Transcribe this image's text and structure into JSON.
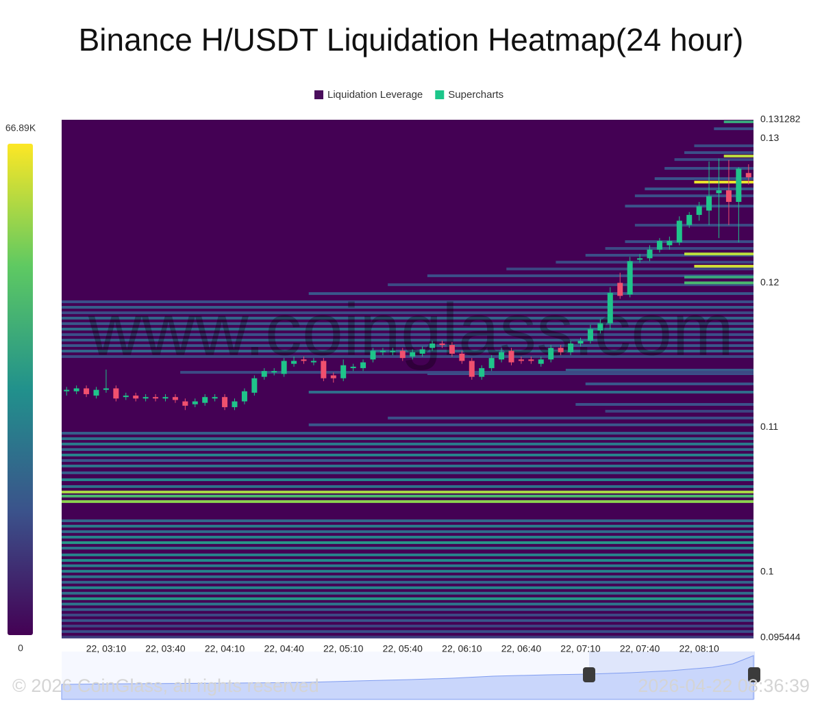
{
  "chart_data": {
    "type": "liquidation-heatmap",
    "title": "Binance H/USDT Liquidation Heatmap(24 hour)",
    "legend": [
      {
        "name": "Liquidation Leverage",
        "color": "#4a0e5c"
      },
      {
        "name": "Supercharts",
        "color": "#1cc68a"
      }
    ],
    "watermark": "www.coinglass.com",
    "copyright": "© 2026 CoinGlass, all rights reserved",
    "timestamp": "2026-04-22 08:36:39",
    "ylim": [
      0.095444,
      0.131282
    ],
    "yticks": [
      0.131282,
      0.13,
      0.12,
      0.11,
      0.1,
      0.095444
    ],
    "clim": [
      0,
      66890
    ],
    "colorbar_ticks": [
      {
        "value": 66890,
        "label": "66.89K"
      },
      0
    ],
    "colors": [
      "#440154",
      "#3b528b",
      "#21918c",
      "#5ec962",
      "#fde725"
    ],
    "up_color": "#1fc48a",
    "down_color": "#f0506e",
    "categories": [
      null,
      null,
      null,
      null,
      "22, 03:10",
      null,
      null,
      null,
      null,
      null,
      "22, 03:40",
      null,
      null,
      null,
      null,
      null,
      "22, 04:10",
      null,
      null,
      null,
      null,
      null,
      "22, 04:40",
      null,
      null,
      null,
      null,
      null,
      "22, 05:10",
      null,
      null,
      null,
      null,
      null,
      "22, 05:40",
      null,
      null,
      null,
      null,
      null,
      "22, 06:10",
      null,
      null,
      null,
      null,
      null,
      "22, 06:40",
      null,
      null,
      null,
      null,
      null,
      "22, 07:10",
      null,
      null,
      null,
      null,
      null,
      "22, 07:40",
      null,
      null,
      null,
      null,
      null,
      "22, 08:10",
      null,
      null,
      null,
      null,
      null
    ],
    "open": [
      0.1125,
      0.1125,
      0.1127,
      0.1122,
      0.1126,
      0.1127,
      0.1121,
      0.1122,
      0.112,
      0.1121,
      0.112,
      0.1121,
      0.1118,
      0.1116,
      0.1117,
      0.112,
      0.1121,
      0.1114,
      0.1118,
      0.1124,
      0.1135,
      0.1138,
      0.1137,
      0.1144,
      0.1147,
      0.1145,
      0.1146,
      0.1136,
      0.1134,
      0.1141,
      0.1141,
      0.1147,
      0.1152,
      0.1152,
      0.1153,
      0.1149,
      0.1151,
      0.1155,
      0.1158,
      0.1157,
      0.1151,
      0.1146,
      0.1135,
      0.1141,
      0.1147,
      0.1153,
      0.1147,
      0.1147,
      0.1144,
      0.1147,
      0.1155,
      0.1152,
      0.1158,
      0.116,
      0.1167,
      0.1172,
      0.12,
      0.1192,
      0.1216,
      0.1217,
      0.1223,
      0.1226,
      0.1228,
      0.124,
      0.1247,
      0.125,
      0.1262,
      0.1264,
      0.1256,
      0.1276
    ],
    "close": [
      0.1126,
      0.1127,
      0.1123,
      0.1126,
      0.1127,
      0.112,
      0.1122,
      0.112,
      0.1121,
      0.112,
      0.1121,
      0.1119,
      0.1115,
      0.1118,
      0.1121,
      0.1121,
      0.1114,
      0.1118,
      0.1125,
      0.1134,
      0.1139,
      0.1139,
      0.1146,
      0.1146,
      0.1146,
      0.1146,
      0.1134,
      0.1134,
      0.1143,
      0.1142,
      0.1145,
      0.1153,
      0.1153,
      0.1153,
      0.1148,
      0.1152,
      0.1154,
      0.1158,
      0.1157,
      0.1151,
      0.1146,
      0.1135,
      0.1141,
      0.1148,
      0.1152,
      0.1145,
      0.1146,
      0.1146,
      0.1147,
      0.1155,
      0.1152,
      0.1158,
      0.116,
      0.1168,
      0.1172,
      0.1193,
      0.1191,
      0.1215,
      0.1217,
      0.1223,
      0.1229,
      0.1229,
      0.1243,
      0.1247,
      0.1253,
      0.126,
      0.1264,
      0.1256,
      0.1279,
      0.1273
    ],
    "high": [
      0.1128,
      0.1129,
      0.1129,
      0.1128,
      0.114,
      0.1129,
      0.1124,
      0.1124,
      0.1123,
      0.1123,
      0.1123,
      0.1123,
      0.112,
      0.112,
      0.1123,
      0.1123,
      0.1123,
      0.112,
      0.1127,
      0.1136,
      0.1141,
      0.1141,
      0.1148,
      0.1149,
      0.1149,
      0.1148,
      0.1148,
      0.1138,
      0.1147,
      0.1144,
      0.1147,
      0.1155,
      0.1155,
      0.1155,
      0.1155,
      0.1154,
      0.1156,
      0.116,
      0.116,
      0.1159,
      0.1153,
      0.1148,
      0.1143,
      0.115,
      0.1155,
      0.1155,
      0.1149,
      0.1149,
      0.1149,
      0.1157,
      0.1157,
      0.116,
      0.1162,
      0.1171,
      0.1175,
      0.1197,
      0.1207,
      0.1218,
      0.122,
      0.1226,
      0.1231,
      0.1232,
      0.1246,
      0.1249,
      0.1256,
      0.1284,
      0.1286,
      0.1285,
      0.128,
      0.1282
    ],
    "low": [
      0.1122,
      0.1123,
      0.1121,
      0.112,
      0.1124,
      0.1118,
      0.1119,
      0.1118,
      0.1118,
      0.1118,
      0.1118,
      0.1117,
      0.1112,
      0.1114,
      0.1115,
      0.1118,
      0.1112,
      0.1112,
      0.1116,
      0.1122,
      0.1133,
      0.1136,
      0.1135,
      0.1142,
      0.1144,
      0.1143,
      0.1132,
      0.1131,
      0.1132,
      0.1139,
      0.1139,
      0.1145,
      0.115,
      0.115,
      0.1146,
      0.1147,
      0.1149,
      0.1153,
      0.1155,
      0.1149,
      0.1144,
      0.1133,
      0.1133,
      0.1139,
      0.1145,
      0.1143,
      0.1144,
      0.1144,
      0.1142,
      0.1145,
      0.115,
      0.115,
      0.1156,
      0.1158,
      0.1165,
      0.1168,
      0.1189,
      0.119,
      0.1214,
      0.1215,
      0.1221,
      0.1223,
      0.1226,
      0.1238,
      0.1243,
      0.124,
      0.1231,
      0.124,
      0.1228,
      0.1268
    ],
    "heatmap": {
      "price": [
        0.1096,
        0.10922,
        0.10885,
        0.10847,
        0.10809,
        0.10771,
        0.10733,
        0.10686,
        0.10638,
        0.10591,
        0.10553,
        0.10525,
        0.10487,
        0.10354,
        0.10317,
        0.10279,
        0.10241,
        0.10203,
        0.10165,
        0.10118,
        0.1008,
        0.10043,
        0.10005,
        0.09967,
        0.09929,
        0.09891,
        0.09853,
        0.09815,
        0.09778,
        0.0974,
        0.09702,
        0.09664,
        0.09626,
        0.09588,
        0.0955,
        0.11018,
        0.11065,
        0.11112,
        0.11159,
        0.11244,
        0.11301,
        0.11372,
        0.11396,
        0.11381,
        0.11869,
        0.11831,
        0.11793,
        0.11756,
        0.11718,
        0.1168,
        0.11642,
        0.11604,
        0.11566,
        0.11528,
        0.1149,
        0.11926,
        0.11987,
        0.12049,
        0.12096,
        0.12143,
        0.12191,
        0.12238,
        0.12285,
        0.12399,
        0.12531,
        0.12602,
        0.1265,
        0.12721,
        0.12792,
        0.12853,
        0.12901,
        0.12948,
        0.13066,
        0.13114,
        0.122,
        0.12115,
        0.12697,
        0.12877,
        0.1204,
        0.12
      ],
      "start": [
        0,
        0,
        0,
        0,
        0,
        0,
        0,
        0,
        0,
        0,
        0,
        0,
        0,
        0,
        0,
        0,
        0,
        0,
        0,
        0,
        0,
        0,
        0,
        0,
        0,
        0,
        0,
        0,
        0,
        0,
        0,
        0,
        0,
        0,
        0,
        25,
        33,
        55,
        52,
        25,
        53,
        37,
        51,
        12,
        0,
        0,
        0,
        0,
        0,
        0,
        0,
        0,
        0,
        0,
        0,
        25,
        33,
        37,
        45,
        50,
        53,
        55,
        57,
        58,
        57,
        58,
        59,
        60,
        61,
        62,
        63,
        64,
        66,
        67,
        63,
        64,
        64,
        67,
        63,
        63
      ],
      "value": [
        20000,
        25000,
        28000,
        22000,
        30000,
        18000,
        26000,
        20000,
        30000,
        25000,
        58000,
        45000,
        55000,
        22000,
        28000,
        24000,
        30000,
        35000,
        26000,
        30000,
        32000,
        28000,
        30000,
        25000,
        22000,
        30000,
        24000,
        35000,
        26000,
        20000,
        15000,
        18000,
        14000,
        16000,
        12000,
        18000,
        16000,
        14000,
        17000,
        24000,
        18000,
        17000,
        20000,
        15000,
        16000,
        20000,
        15000,
        22000,
        18000,
        24000,
        16000,
        20000,
        18000,
        22000,
        15000,
        18000,
        15000,
        16000,
        14000,
        15000,
        16000,
        15000,
        16000,
        15000,
        17000,
        16000,
        18000,
        17000,
        16000,
        15000,
        16000,
        15000,
        16000,
        40000,
        60000,
        62000,
        65000,
        60000,
        40000,
        45000
      ]
    }
  }
}
